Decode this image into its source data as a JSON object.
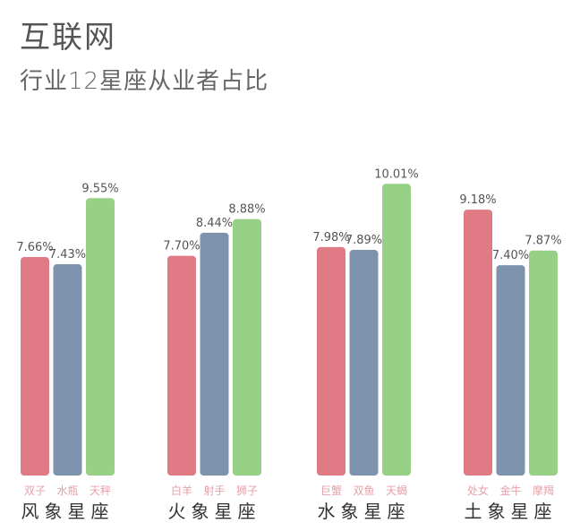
{
  "title": "互联网",
  "subtitle": "行业12星座从业者占比",
  "colors": {
    "pink": "#E07A84",
    "blue": "#7C92AD",
    "green": "#96D186",
    "label_text": "#E8A0A8",
    "value_text": "#555555",
    "group_text": "#333333"
  },
  "chart_data": {
    "type": "bar",
    "title": "互联网",
    "subtitle": "行业12星座从业者占比",
    "value_unit": "%",
    "groups": [
      {
        "name": "风象星座",
        "bars": [
          {
            "label": "双子",
            "value": 7.66,
            "display": "7.66%",
            "color": "pink"
          },
          {
            "label": "水瓶",
            "value": 7.43,
            "display": "7.43%",
            "color": "blue"
          },
          {
            "label": "天秤",
            "value": 9.55,
            "display": "9.55%",
            "color": "green"
          }
        ]
      },
      {
        "name": "火象星座",
        "bars": [
          {
            "label": "白羊",
            "value": 7.7,
            "display": "7.70%",
            "color": "pink"
          },
          {
            "label": "射手",
            "value": 8.44,
            "display": "8.44%",
            "color": "blue"
          },
          {
            "label": "狮子",
            "value": 8.88,
            "display": "8.88%",
            "color": "green"
          }
        ]
      },
      {
        "name": "水象星座",
        "bars": [
          {
            "label": "巨蟹",
            "value": 7.98,
            "display": "7.98%",
            "color": "pink"
          },
          {
            "label": "双鱼",
            "value": 7.89,
            "display": "7.89%",
            "color": "blue"
          },
          {
            "label": "天蝎",
            "value": 10.01,
            "display": "10.01%",
            "color": "green"
          }
        ]
      },
      {
        "name": "土象星座",
        "bars": [
          {
            "label": "处女",
            "value": 9.18,
            "display": "9.18%",
            "color": "pink"
          },
          {
            "label": "金牛",
            "value": 7.4,
            "display": "7.40%",
            "color": "blue"
          },
          {
            "label": "摩羯",
            "value": 7.87,
            "display": "7.87%",
            "color": "green"
          }
        ]
      }
    ]
  }
}
